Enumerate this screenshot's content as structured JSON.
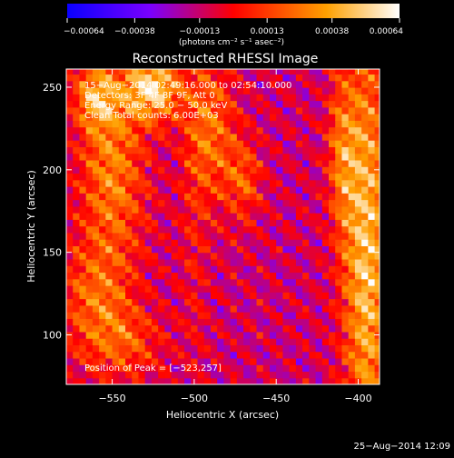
{
  "chart_data": {
    "type": "heatmap",
    "title": "Reconstructed RHESSI Image",
    "xlabel": "Heliocentric X (arcsec)",
    "ylabel": "Heliocentric Y (arcsec)",
    "xlim": [
      -578,
      -387
    ],
    "ylim": [
      70,
      261
    ],
    "xticks": [
      -550,
      -500,
      -450,
      -400
    ],
    "xtick_labels": [
      "−550",
      "−500",
      "−450",
      "−400"
    ],
    "yticks": [
      100,
      150,
      200,
      250
    ],
    "ytick_labels": [
      "100",
      "150",
      "200",
      "250"
    ],
    "colorbar": {
      "range": [
        -0.00064,
        0.00064
      ],
      "ticks": [
        -0.00064,
        -0.00038,
        -0.00013,
        0.00013,
        0.00038,
        0.00064
      ],
      "tick_labels": [
        "−0.00064",
        "−0.00038",
        "−0.00013",
        "0.00013",
        "0.00038",
        "0.00064"
      ],
      "units_label": "(photons cm⁻² s⁻¹ asec⁻²)",
      "colors": [
        "#0a00ff",
        "#7a00ff",
        "#ff0000",
        "#ffa000",
        "#ffffff"
      ]
    },
    "annotations": [
      "15−Aug−2014 02:49:16.000 to 02:54:10.000",
      "Detectors: 3F 4F 8F 9F, Att 0",
      "Energy Range: 25.0 − 50.0 keV",
      "Clean    Total counts: 6.00E+03"
    ],
    "peak_label": "Position of Peak = [−523,257]",
    "peak": [
      -523,
      257
    ],
    "sources": [
      {
        "x": -550,
        "y": 200,
        "sx": 14,
        "sy": 40,
        "amp": 0.0004
      },
      {
        "x": -525,
        "y": 250,
        "sx": 12,
        "sy": 14,
        "amp": 0.00064
      },
      {
        "x": -560,
        "y": 245,
        "sx": 9,
        "sy": 14,
        "amp": 0.00042
      },
      {
        "x": -490,
        "y": 225,
        "sx": 10,
        "sy": 30,
        "amp": 0.00036
      },
      {
        "x": -470,
        "y": 195,
        "sx": 8,
        "sy": 18,
        "amp": 0.00028
      },
      {
        "x": -395,
        "y": 150,
        "sx": 10,
        "sy": 90,
        "amp": 0.00058
      },
      {
        "x": -410,
        "y": 210,
        "sx": 6,
        "sy": 35,
        "amp": 0.00032
      },
      {
        "x": -560,
        "y": 120,
        "sx": 15,
        "sy": 25,
        "amp": 0.00032
      },
      {
        "x": -540,
        "y": 95,
        "sx": 15,
        "sy": 15,
        "amp": 0.00024
      },
      {
        "x": -500,
        "y": 160,
        "sx": 6,
        "sy": 60,
        "amp": 0.00012
      }
    ]
  },
  "timestamp": "25−Aug−2014 12:09"
}
